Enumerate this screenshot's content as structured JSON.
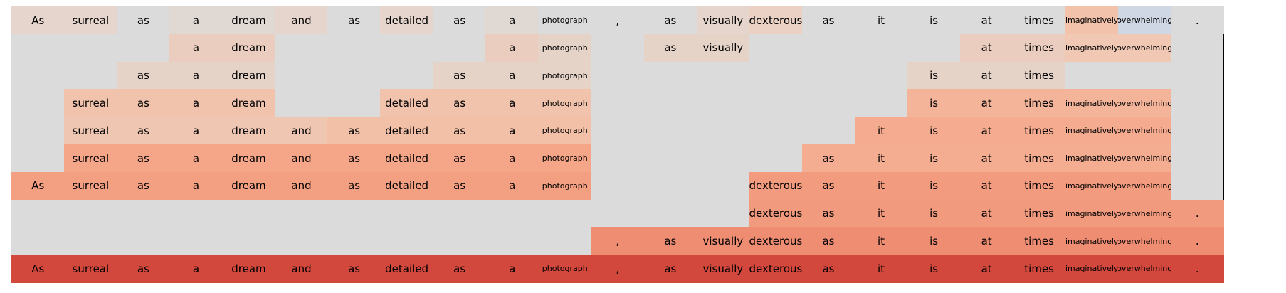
{
  "tokens": [
    "As",
    "surreal",
    "as",
    "a",
    "dream",
    "and",
    "as",
    "detailed",
    "as",
    "a",
    "photograph",
    ",",
    "as",
    "visually",
    "dexterous",
    "as",
    "it",
    "is",
    "at",
    "times",
    "imaginatively",
    "overwhelming",
    "."
  ],
  "background_color": "#dcdbdb",
  "rows": [
    {
      "cells": [
        {
          "token": 0,
          "color": "#e5d5cc"
        },
        {
          "token": 1,
          "color": "#e5d5cc"
        },
        {
          "token": 2,
          "color": "#dcdbdb"
        },
        {
          "token": 3,
          "color": "#e0d8d3"
        },
        {
          "token": 4,
          "color": "#e0d8d3"
        },
        {
          "token": 5,
          "color": "#e5d5cc"
        },
        {
          "token": 6,
          "color": "#dcdbdb"
        },
        {
          "token": 7,
          "color": "#e5d5cc"
        },
        {
          "token": 8,
          "color": "#dcdbdb"
        },
        {
          "token": 9,
          "color": "#e0d8d3"
        },
        {
          "token": 10,
          "color": "#dcdbdb"
        },
        {
          "token": 11,
          "color": "#dcdbdb"
        },
        {
          "token": 12,
          "color": "#dcdbdb"
        },
        {
          "token": 13,
          "color": "#e5d5cc"
        },
        {
          "token": 14,
          "color": "#ead1c3"
        },
        {
          "token": 15,
          "color": "#dcdbdb"
        },
        {
          "token": 16,
          "color": "#dcdbdb"
        },
        {
          "token": 17,
          "color": "#dcdbdb"
        },
        {
          "token": 18,
          "color": "#dcdbdb"
        },
        {
          "token": 19,
          "color": "#dcdbdb"
        },
        {
          "token": 20,
          "color": "#f2c2ab"
        },
        {
          "token": 21,
          "color": "#cfd7e4"
        },
        {
          "token": 22,
          "color": "#dcdbdb"
        }
      ]
    },
    {
      "cells": [
        {
          "token": 3,
          "color": "#eacdbe"
        },
        {
          "token": 4,
          "color": "#eacdbe"
        },
        {
          "token": 9,
          "color": "#eacdbe"
        },
        {
          "token": 10,
          "color": "#e6d3c8"
        },
        {
          "token": 12,
          "color": "#e6d3c8"
        },
        {
          "token": 13,
          "color": "#e6d3c8"
        },
        {
          "token": 18,
          "color": "#eacdbe"
        },
        {
          "token": 19,
          "color": "#eacdbe"
        },
        {
          "token": 20,
          "color": "#f0c8b4"
        },
        {
          "token": 21,
          "color": "#f0c8b4"
        }
      ]
    },
    {
      "cells": [
        {
          "token": 2,
          "color": "#e6d3c8"
        },
        {
          "token": 3,
          "color": "#e6d3c8"
        },
        {
          "token": 4,
          "color": "#e6d3c8"
        },
        {
          "token": 8,
          "color": "#e6d3c8"
        },
        {
          "token": 9,
          "color": "#e6d3c8"
        },
        {
          "token": 10,
          "color": "#e6d3c8"
        },
        {
          "token": 17,
          "color": "#e6d3c8"
        },
        {
          "token": 18,
          "color": "#e6d3c8"
        },
        {
          "token": 19,
          "color": "#e6d3c8"
        }
      ]
    },
    {
      "cells": [
        {
          "token": 1,
          "color": "#f1c3ad"
        },
        {
          "token": 2,
          "color": "#f1c3ad"
        },
        {
          "token": 3,
          "color": "#f1c3ad"
        },
        {
          "token": 4,
          "color": "#f1c3ad"
        },
        {
          "token": 7,
          "color": "#f1c3ad"
        },
        {
          "token": 8,
          "color": "#f1c3ad"
        },
        {
          "token": 9,
          "color": "#f1c3ad"
        },
        {
          "token": 10,
          "color": "#f1c3ad"
        },
        {
          "token": 17,
          "color": "#f4b49a"
        },
        {
          "token": 18,
          "color": "#f4b49a"
        },
        {
          "token": 19,
          "color": "#f4b49a"
        },
        {
          "token": 20,
          "color": "#f4b49a"
        },
        {
          "token": 21,
          "color": "#f4b49a"
        }
      ]
    },
    {
      "cells": [
        {
          "token": 1,
          "color": "#efc6b2"
        },
        {
          "token": 2,
          "color": "#efc6b2"
        },
        {
          "token": 3,
          "color": "#efc6b2"
        },
        {
          "token": 4,
          "color": "#efc6b2"
        },
        {
          "token": 5,
          "color": "#efc6b2"
        },
        {
          "token": 6,
          "color": "#f2bfa7"
        },
        {
          "token": 7,
          "color": "#f2bfa7"
        },
        {
          "token": 8,
          "color": "#f2bfa7"
        },
        {
          "token": 9,
          "color": "#f2bfa7"
        },
        {
          "token": 10,
          "color": "#f2bfa7"
        },
        {
          "token": 16,
          "color": "#f5ab8f"
        },
        {
          "token": 17,
          "color": "#f5ab8f"
        },
        {
          "token": 18,
          "color": "#f5ab8f"
        },
        {
          "token": 19,
          "color": "#f5ab8f"
        },
        {
          "token": 20,
          "color": "#f5ab8f"
        },
        {
          "token": 21,
          "color": "#f5ab8f"
        }
      ]
    },
    {
      "cells": [
        {
          "token": 1,
          "color": "#f5a588"
        },
        {
          "token": 2,
          "color": "#f5a588"
        },
        {
          "token": 3,
          "color": "#f5a588"
        },
        {
          "token": 4,
          "color": "#f5a588"
        },
        {
          "token": 5,
          "color": "#f5a588"
        },
        {
          "token": 6,
          "color": "#f5a588"
        },
        {
          "token": 7,
          "color": "#f5a588"
        },
        {
          "token": 8,
          "color": "#f5a588"
        },
        {
          "token": 9,
          "color": "#f5a588"
        },
        {
          "token": 10,
          "color": "#f5a588"
        },
        {
          "token": 15,
          "color": "#f5ad92"
        },
        {
          "token": 16,
          "color": "#f5ad92"
        },
        {
          "token": 17,
          "color": "#f5ad92"
        },
        {
          "token": 18,
          "color": "#f5ad92"
        },
        {
          "token": 19,
          "color": "#f5ad92"
        },
        {
          "token": 20,
          "color": "#f5ad92"
        },
        {
          "token": 21,
          "color": "#f5ad92"
        }
      ]
    },
    {
      "cells": [
        {
          "token": 0,
          "color": "#f39f82"
        },
        {
          "token": 1,
          "color": "#f39f82"
        },
        {
          "token": 2,
          "color": "#f39f82"
        },
        {
          "token": 3,
          "color": "#f39f82"
        },
        {
          "token": 4,
          "color": "#f39f82"
        },
        {
          "token": 5,
          "color": "#f39f82"
        },
        {
          "token": 6,
          "color": "#f39f82"
        },
        {
          "token": 7,
          "color": "#f39f82"
        },
        {
          "token": 8,
          "color": "#f39f82"
        },
        {
          "token": 9,
          "color": "#f39f82"
        },
        {
          "token": 10,
          "color": "#f39f82"
        },
        {
          "token": 14,
          "color": "#f29b7e"
        },
        {
          "token": 15,
          "color": "#f29b7e"
        },
        {
          "token": 16,
          "color": "#f29b7e"
        },
        {
          "token": 17,
          "color": "#f29b7e"
        },
        {
          "token": 18,
          "color": "#f29b7e"
        },
        {
          "token": 19,
          "color": "#f29b7e"
        },
        {
          "token": 20,
          "color": "#f29b7e"
        },
        {
          "token": 21,
          "color": "#f29b7e"
        }
      ]
    },
    {
      "cells": [
        {
          "token": 14,
          "color": "#f29a7d"
        },
        {
          "token": 15,
          "color": "#f29a7d"
        },
        {
          "token": 16,
          "color": "#f29a7d"
        },
        {
          "token": 17,
          "color": "#f29a7d"
        },
        {
          "token": 18,
          "color": "#f29a7d"
        },
        {
          "token": 19,
          "color": "#f29a7d"
        },
        {
          "token": 20,
          "color": "#f29a7d"
        },
        {
          "token": 21,
          "color": "#f29a7d"
        },
        {
          "token": 22,
          "color": "#f29a7d"
        }
      ]
    },
    {
      "cells": [
        {
          "token": 11,
          "color": "#ef8d72"
        },
        {
          "token": 12,
          "color": "#ef8d72"
        },
        {
          "token": 13,
          "color": "#ef8d72"
        },
        {
          "token": 14,
          "color": "#ef8d72"
        },
        {
          "token": 15,
          "color": "#ef8d72"
        },
        {
          "token": 16,
          "color": "#ef8d72"
        },
        {
          "token": 17,
          "color": "#ef8d72"
        },
        {
          "token": 18,
          "color": "#ef8d72"
        },
        {
          "token": 19,
          "color": "#ef8d72"
        },
        {
          "token": 20,
          "color": "#ef8d72"
        },
        {
          "token": 21,
          "color": "#ef8d72"
        },
        {
          "token": 22,
          "color": "#ef8d72"
        }
      ]
    },
    {
      "cells": [
        {
          "token": 0,
          "color": "#d3483d"
        },
        {
          "token": 1,
          "color": "#d3483d"
        },
        {
          "token": 2,
          "color": "#d3483d"
        },
        {
          "token": 3,
          "color": "#d3483d"
        },
        {
          "token": 4,
          "color": "#d3483d"
        },
        {
          "token": 5,
          "color": "#d3483d"
        },
        {
          "token": 6,
          "color": "#d3483d"
        },
        {
          "token": 7,
          "color": "#d3483d"
        },
        {
          "token": 8,
          "color": "#d3483d"
        },
        {
          "token": 9,
          "color": "#d3483d"
        },
        {
          "token": 10,
          "color": "#d3483d"
        },
        {
          "token": 11,
          "color": "#d3483d"
        },
        {
          "token": 12,
          "color": "#d3483d"
        },
        {
          "token": 13,
          "color": "#d3483d"
        },
        {
          "token": 14,
          "color": "#d3483d"
        },
        {
          "token": 15,
          "color": "#d3483d"
        },
        {
          "token": 16,
          "color": "#d3483d"
        },
        {
          "token": 17,
          "color": "#d3483d"
        },
        {
          "token": 18,
          "color": "#d3483d"
        },
        {
          "token": 19,
          "color": "#d3483d"
        },
        {
          "token": 20,
          "color": "#d3483d"
        },
        {
          "token": 21,
          "color": "#d3483d"
        },
        {
          "token": 22,
          "color": "#d3483d"
        }
      ]
    }
  ]
}
